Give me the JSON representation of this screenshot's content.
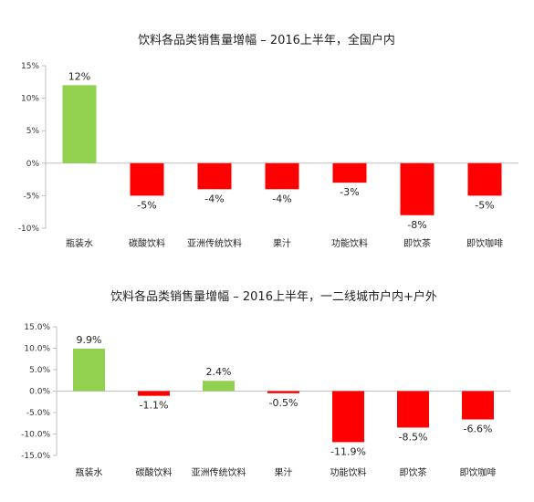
{
  "chart_data": [
    {
      "type": "bar",
      "title": "饮料各品类销售量增幅 – 2016上半年，全国户内",
      "categories": [
        "瓶装水",
        "碳酸饮料",
        "亚洲传统饮料",
        "果汁",
        "功能饮料",
        "即饮茶",
        "即饮咖啡"
      ],
      "values": [
        12,
        -5,
        -4,
        -4,
        -3,
        -8,
        -5
      ],
      "data_labels": [
        "12%",
        "-5%",
        "-4%",
        "-4%",
        "-3%",
        "-8%",
        "-5%"
      ],
      "ylim": [
        -10,
        15
      ],
      "yticks": [
        15,
        10,
        5,
        0,
        -5,
        -10
      ],
      "ytick_labels": [
        "15%",
        "10%",
        "5%",
        "0%",
        "-5%",
        "-10%"
      ],
      "xlabel": "",
      "ylabel": "",
      "grid": false,
      "colors": {
        "positive": "#92d050",
        "negative": "#ff0000"
      }
    },
    {
      "type": "bar",
      "title": "饮料各品类销售量增幅 – 2016上半年，一二线城市户内+户外",
      "categories": [
        "瓶装水",
        "碳酸饮料",
        "亚洲传统饮料",
        "果汁",
        "功能饮料",
        "即饮茶",
        "即饮咖啡"
      ],
      "values": [
        9.9,
        -1.1,
        2.4,
        -0.5,
        -11.9,
        -8.5,
        -6.6
      ],
      "data_labels": [
        "9.9%",
        "-1.1%",
        "2.4%",
        "-0.5%",
        "-11.9%",
        "-8.5%",
        "-6.6%"
      ],
      "ylim": [
        -15,
        15
      ],
      "yticks": [
        15,
        10,
        5,
        0,
        -5,
        -10,
        -15
      ],
      "ytick_labels": [
        "15.0%",
        "10.0%",
        "5.0%",
        "0.0%",
        "-5.0%",
        "-10.0%",
        "-15.0%"
      ],
      "xlabel": "",
      "ylabel": "",
      "grid": false,
      "colors": {
        "positive": "#92d050",
        "negative": "#ff0000"
      }
    }
  ]
}
